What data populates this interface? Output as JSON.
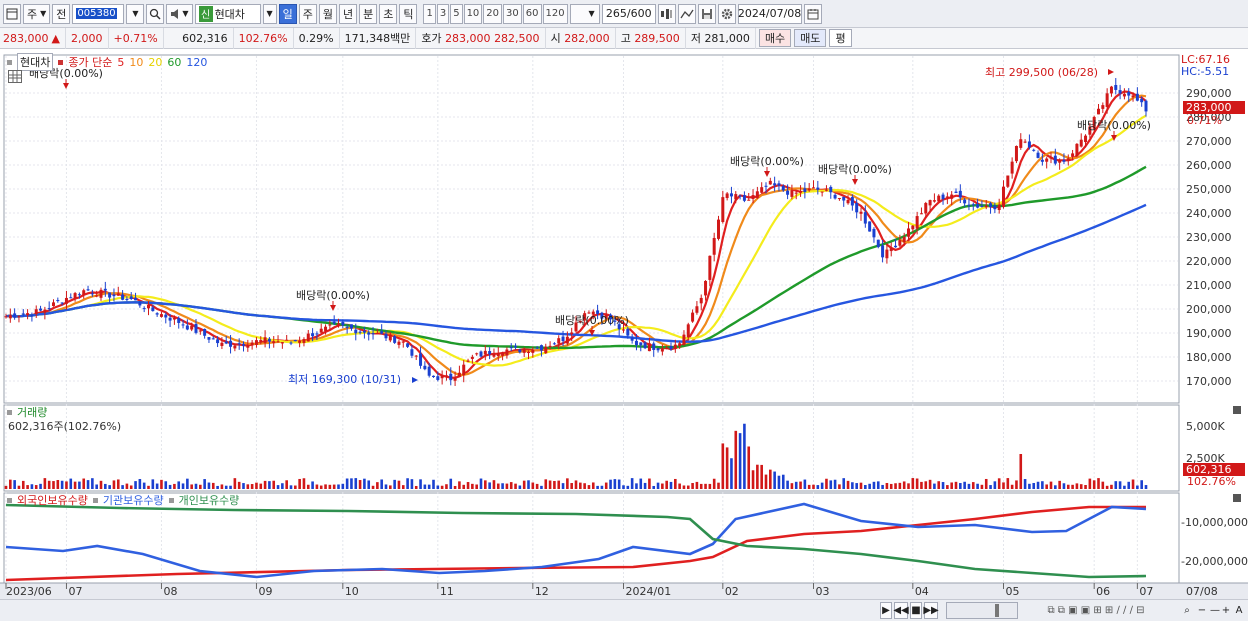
{
  "toolbar": {
    "market_label": "주",
    "prev_label": "전",
    "code": "005380",
    "shin_label": "신",
    "stock_name": "현대차",
    "period_tabs": [
      "일",
      "주",
      "월",
      "년",
      "분",
      "초",
      "틱"
    ],
    "number_tabs": [
      "1",
      "3",
      "5",
      "10",
      "20",
      "30",
      "60",
      "120"
    ],
    "count": "265",
    "count_total": "/600",
    "date": "2024/07/08"
  },
  "quote": {
    "price": "283,000",
    "arrow": "▲",
    "change": "2,000",
    "change_pct": "+0.71%",
    "volume": "602,316",
    "volume_pct": "102.76%",
    "turnover": "0.29%",
    "amount": "171,348백만",
    "ask_label": "호가",
    "ask": "283,000",
    "bid": "282,500",
    "open_label": "시",
    "open": "282,000",
    "high_label": "고",
    "high": "289,500",
    "low_label": "저",
    "low": "281,000",
    "buy_label": "매수",
    "sell_label": "매도",
    "eval_label": "평"
  },
  "price_panel": {
    "stock_tab": "현대차",
    "ma_label": "종가 단순",
    "ma_periods": [
      "5",
      "10",
      "20",
      "60",
      "120"
    ],
    "lc": "LC:67.16",
    "hc": "HC:-5.51",
    "current_price": "283,000",
    "current_pct": "0.71%",
    "y_ticks": [
      "290,000",
      "280,000",
      "270,000",
      "260,000",
      "250,000",
      "240,000",
      "230,000",
      "220,000",
      "210,000",
      "200,000",
      "190,000",
      "180,000",
      "170,000"
    ],
    "high_note": "최고 299,500 (06/28)",
    "low_note": "최저 169,300 (10/31)",
    "dividend_notes": [
      "배당락(0.00%)",
      "배당락(0.00%)",
      "배당락(0.00%)",
      "배당락(0.00%)",
      "배당락(0.00%)",
      "배당락(0.00%)"
    ]
  },
  "volume_panel": {
    "title": "거래량",
    "value": "602,316주(102.76%)",
    "y_ticks": [
      "5,000K",
      "2,500K"
    ],
    "current": "602,316",
    "current_pct": "102.76%"
  },
  "holding_panel": {
    "series": [
      "외국인보유수량",
      "기관보유수량",
      "개인보유수량"
    ],
    "y_ticks": [
      "-10,000,000",
      "-20,000,000"
    ]
  },
  "x_axis": {
    "labels": [
      "2023/06",
      "07",
      "08",
      "09",
      "10",
      "11",
      "12",
      "2024/01",
      "02",
      "03",
      "04",
      "05",
      "06",
      "07"
    ],
    "end_label": "07/08"
  },
  "colors": {
    "up": "#d11818",
    "down": "#1a40d0",
    "ma5": "#e02020",
    "ma10": "#f08a1a",
    "ma20": "#f4ec1c",
    "ma60": "#1f9a2a",
    "ma120": "#2656e0",
    "foreign": "#e02020",
    "institution": "#3060e0",
    "individual": "#2f8f4f"
  },
  "icons": {
    "window": "window-icon",
    "search": "search-icon",
    "speaker": "speaker-icon",
    "calendar": "calendar-icon",
    "settings": "gear-icon",
    "save": "save-icon",
    "grid": "grid-icon"
  }
}
